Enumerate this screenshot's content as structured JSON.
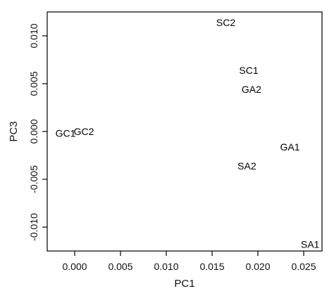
{
  "chart_data": {
    "type": "scatter",
    "title": "",
    "xlabel": "PC1",
    "ylabel": "PC3",
    "xlim": [
      -0.003,
      0.027
    ],
    "ylim": [
      -0.0125,
      0.0125
    ],
    "xticks": [
      0.0,
      0.005,
      0.01,
      0.015,
      0.02,
      0.025
    ],
    "xtick_labels": [
      "0.000",
      "0.005",
      "0.010",
      "0.015",
      "0.020",
      "0.025"
    ],
    "yticks": [
      -0.01,
      -0.005,
      0.0,
      0.005,
      0.01
    ],
    "ytick_labels": [
      "-0.010",
      "-0.005",
      "0.000",
      "0.005",
      "0.010"
    ],
    "grid": false,
    "points": [
      {
        "label": "SC2",
        "x": 0.0165,
        "y": 0.0114
      },
      {
        "label": "SC1",
        "x": 0.019,
        "y": 0.0064
      },
      {
        "label": "GA2",
        "x": 0.0193,
        "y": 0.0044
      },
      {
        "label": "GC1",
        "x": -0.001,
        "y": -0.0002
      },
      {
        "label": "GC2",
        "x": 0.001,
        "y": 0.0
      },
      {
        "label": "GA1",
        "x": 0.0235,
        "y": -0.0016
      },
      {
        "label": "SA2",
        "x": 0.0188,
        "y": -0.0036
      },
      {
        "label": "SA1",
        "x": 0.0257,
        "y": -0.0118
      }
    ]
  }
}
